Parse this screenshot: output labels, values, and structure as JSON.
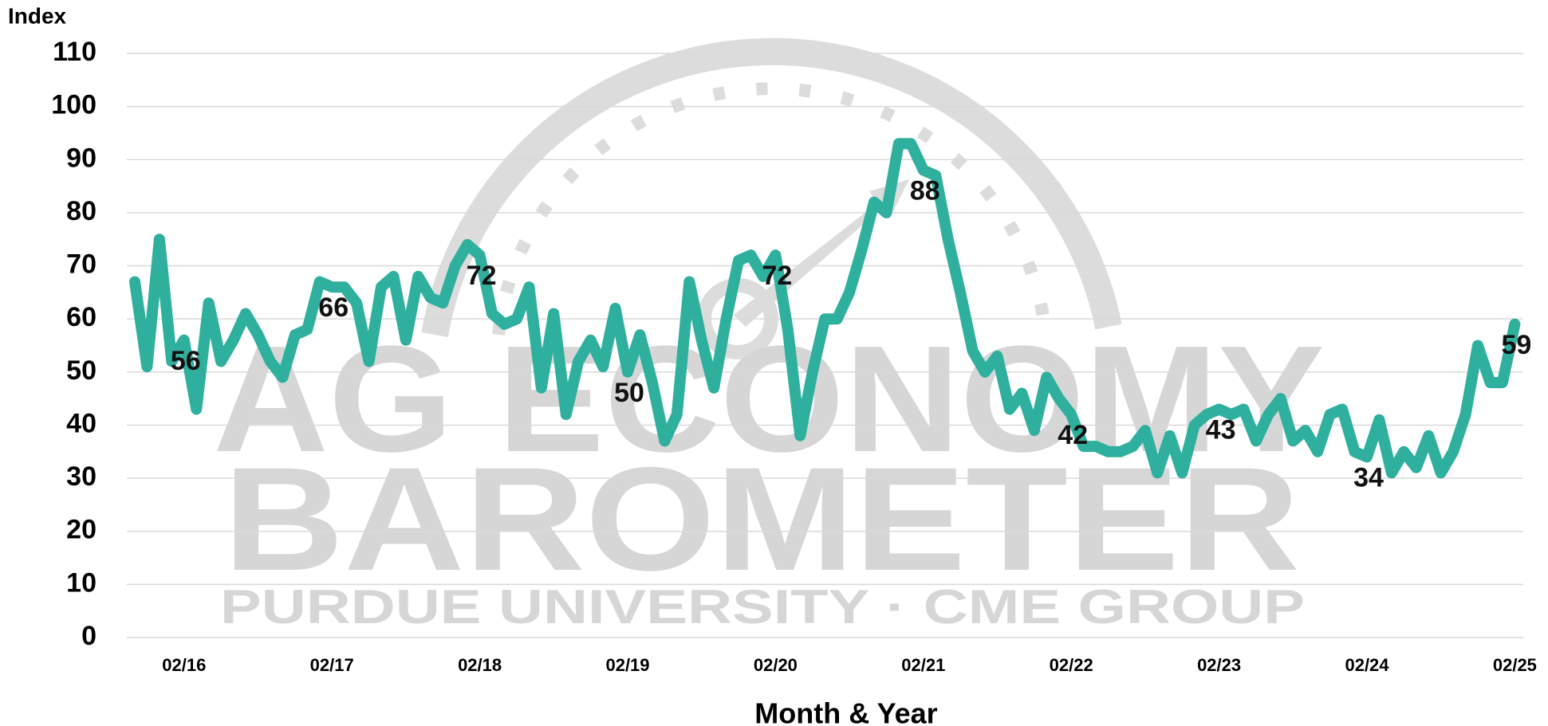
{
  "chart_data": {
    "type": "line",
    "y_axis_label": "Index",
    "x_axis_label": "Month & Year",
    "watermark": {
      "line1": "AG ECONOMY",
      "line2": "BAROMETER",
      "line3": "PURDUE UNIVERSITY · CME GROUP"
    },
    "categories": [
      null,
      null,
      null,
      null,
      "02/16",
      null,
      null,
      null,
      null,
      null,
      null,
      null,
      null,
      null,
      null,
      null,
      "02/17",
      null,
      null,
      null,
      null,
      null,
      null,
      null,
      null,
      null,
      null,
      null,
      "02/18",
      null,
      null,
      null,
      null,
      null,
      null,
      null,
      null,
      null,
      null,
      null,
      "02/19",
      null,
      null,
      null,
      null,
      null,
      null,
      null,
      null,
      null,
      null,
      null,
      "02/20",
      null,
      null,
      null,
      null,
      null,
      null,
      null,
      null,
      null,
      null,
      null,
      "02/21",
      null,
      null,
      null,
      null,
      null,
      null,
      null,
      null,
      null,
      null,
      null,
      "02/22",
      null,
      null,
      null,
      null,
      null,
      null,
      null,
      null,
      null,
      null,
      null,
      "02/23",
      null,
      null,
      null,
      null,
      null,
      null,
      null,
      null,
      null,
      null,
      null,
      "02/24",
      null,
      null,
      null,
      null,
      null,
      null,
      null,
      null,
      null,
      null,
      null,
      "02/25"
    ],
    "series": [
      {
        "name": "Index",
        "color": "#2fb09f",
        "values": [
          67,
          51,
          75,
          52,
          56,
          43,
          63,
          52,
          56,
          61,
          57,
          52,
          49,
          57,
          58,
          67,
          66,
          66,
          63,
          52,
          66,
          68,
          56,
          68,
          64,
          63,
          70,
          74,
          72,
          61,
          59,
          60,
          66,
          47,
          61,
          42,
          52,
          56,
          51,
          62,
          50,
          57,
          48,
          37,
          42,
          67,
          56,
          47,
          60,
          71,
          72,
          68,
          72,
          58,
          38,
          50,
          60,
          60,
          65,
          73,
          82,
          80,
          93,
          93,
          88,
          87,
          75,
          65,
          54,
          50,
          53,
          43,
          46,
          39,
          49,
          45,
          42,
          36,
          36,
          35,
          35,
          36,
          39,
          31,
          38,
          31,
          40,
          42,
          43,
          42,
          43,
          37,
          42,
          45,
          37,
          39,
          35,
          42,
          43,
          35,
          34,
          41,
          31,
          35,
          32,
          38,
          31,
          35,
          42,
          55,
          48,
          48,
          59
        ]
      }
    ],
    "ylim": [
      0,
      110
    ],
    "yticks": [
      0,
      10,
      20,
      30,
      40,
      50,
      60,
      70,
      80,
      90,
      100,
      110
    ],
    "grid": true
  }
}
